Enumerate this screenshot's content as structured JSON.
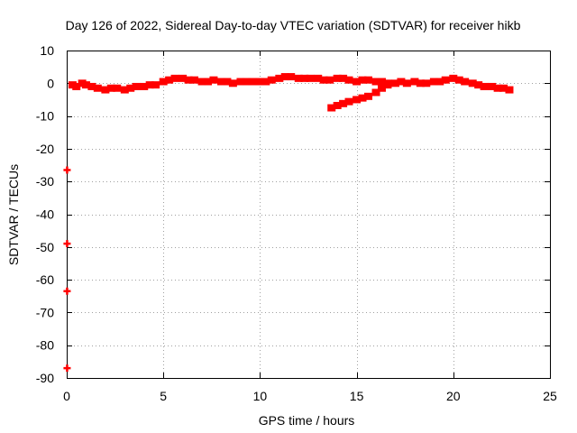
{
  "chart_data": {
    "type": "scatter",
    "title": "Day 126 of 2022, Sidereal Day-to-day VTEC variation (SDTVAR) for receiver hikb",
    "xlabel": "GPS time / hours",
    "ylabel": "SDTVAR / TECUs",
    "xlim": [
      0,
      25
    ],
    "ylim": [
      -90,
      10
    ],
    "xticks": [
      0,
      5,
      10,
      15,
      20,
      25
    ],
    "yticks": [
      10,
      0,
      -10,
      -20,
      -30,
      -40,
      -50,
      -60,
      -70,
      -80,
      -90
    ],
    "grid": true,
    "marker_color": "#ff0000",
    "series": [
      {
        "name": "main",
        "x": [
          0.3,
          0.5,
          0.8,
          1.0,
          1.3,
          1.6,
          2.0,
          2.3,
          2.6,
          3.0,
          3.3,
          3.6,
          4.0,
          4.3,
          4.6,
          5.0,
          5.3,
          5.6,
          6.0,
          6.3,
          6.6,
          7.0,
          7.3,
          7.6,
          8.0,
          8.3,
          8.6,
          9.0,
          9.3,
          9.6,
          10.0,
          10.3,
          10.6,
          11.0,
          11.3,
          11.6,
          12.0,
          12.3,
          12.6,
          13.0,
          13.3,
          13.6,
          14.0,
          14.3,
          14.6,
          15.0,
          15.3,
          15.6,
          16.0,
          16.3,
          16.6,
          17.0,
          17.3,
          17.6,
          18.0,
          18.3,
          18.6,
          19.0,
          19.3,
          19.6,
          20.0,
          20.3,
          20.6,
          21.0,
          21.3,
          21.6,
          22.0,
          22.3,
          22.6,
          22.9
        ],
        "y": [
          -0.5,
          -1.0,
          0.0,
          -0.5,
          -1.0,
          -1.5,
          -2.0,
          -1.5,
          -1.5,
          -2.0,
          -1.5,
          -1.0,
          -1.0,
          -0.5,
          -0.5,
          0.5,
          1.0,
          1.5,
          1.5,
          1.0,
          1.0,
          0.5,
          0.5,
          1.0,
          0.5,
          0.5,
          0.0,
          0.5,
          0.5,
          0.5,
          0.5,
          0.5,
          1.0,
          1.5,
          2.0,
          2.0,
          1.5,
          1.5,
          1.5,
          1.5,
          1.0,
          1.0,
          1.5,
          1.5,
          1.0,
          0.5,
          1.0,
          1.0,
          0.5,
          0.5,
          0.0,
          0.0,
          0.5,
          0.0,
          0.5,
          0.0,
          0.0,
          0.5,
          0.5,
          1.0,
          1.5,
          1.0,
          0.5,
          0.0,
          -0.5,
          -1.0,
          -1.0,
          -1.5,
          -1.5,
          -2.0
        ]
      },
      {
        "name": "branch",
        "x": [
          13.7,
          14.0,
          14.3,
          14.6,
          15.0,
          15.3,
          15.6,
          16.0,
          16.3,
          16.6
        ],
        "y": [
          -7.5,
          -6.8,
          -6.2,
          -5.6,
          -5.0,
          -4.5,
          -4.0,
          -2.8,
          -1.5,
          -0.5
        ]
      },
      {
        "name": "outliers",
        "x": [
          0.02,
          0.02,
          0.02,
          0.02
        ],
        "y": [
          -26.5,
          -49.0,
          -63.5,
          -87.0
        ]
      }
    ]
  }
}
